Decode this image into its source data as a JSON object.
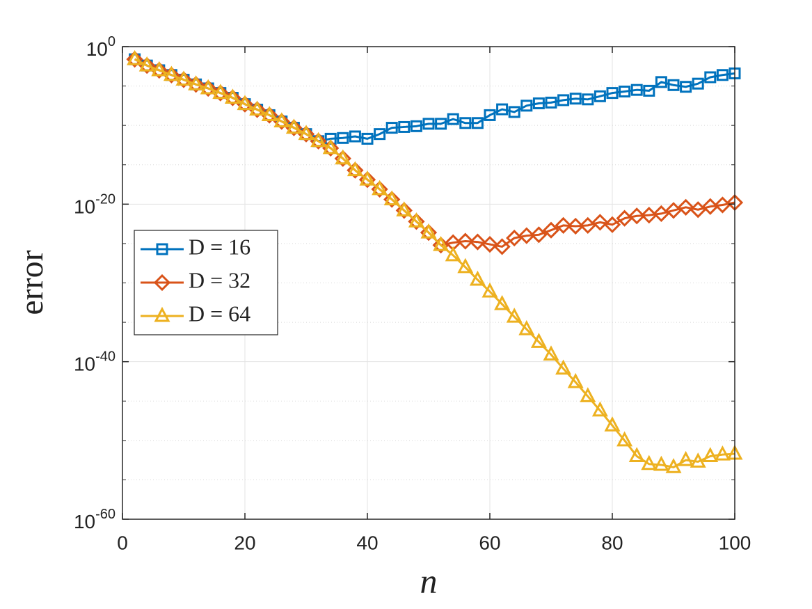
{
  "chart_data": {
    "type": "line",
    "xlabel": "n",
    "ylabel": "error",
    "x": [
      2,
      4,
      6,
      8,
      10,
      12,
      14,
      16,
      18,
      20,
      22,
      24,
      26,
      28,
      30,
      32,
      34,
      36,
      38,
      40,
      42,
      44,
      46,
      48,
      50,
      52,
      54,
      56,
      58,
      60,
      62,
      64,
      66,
      68,
      70,
      72,
      74,
      76,
      78,
      80,
      82,
      84,
      86,
      88,
      90,
      92,
      94,
      96,
      98,
      100
    ],
    "series": [
      {
        "name": "D = 16",
        "color": "#0072BD",
        "marker": "square",
        "values": [
          0.025,
          0.004,
          0.001,
          0.00025,
          6.3e-05,
          1.6e-05,
          5e-06,
          1.3e-06,
          3.2e-07,
          5e-08,
          1e-08,
          2e-09,
          3.2e-10,
          5e-11,
          7.9e-12,
          1e-12,
          2e-12,
          2.5e-12,
          4e-12,
          2e-12,
          7.9e-12,
          5e-11,
          6.3e-11,
          7.9e-11,
          1.6e-10,
          1.6e-10,
          6.3e-10,
          2e-10,
          2e-10,
          2e-09,
          1.1e-08,
          5e-09,
          3.2e-08,
          6.3e-08,
          7.9e-08,
          1.6e-07,
          2.5e-07,
          2e-07,
          5e-07,
          1.3e-06,
          2e-06,
          3.2e-06,
          2.5e-06,
          3.2e-05,
          1.3e-05,
          7.9e-06,
          2e-05,
          0.00013,
          0.00025,
          0.0004
        ]
      },
      {
        "name": "D = 32",
        "color": "#D95319",
        "marker": "diamond",
        "values": [
          0.025,
          0.004,
          0.001,
          0.00025,
          6.3e-05,
          1.6e-05,
          5e-06,
          1.3e-06,
          3.2e-07,
          5e-08,
          1e-08,
          2e-09,
          3.2e-10,
          5e-11,
          7.9e-12,
          1e-12,
          1.3e-13,
          6.3e-15,
          2e-16,
          1.3e-17,
          7.9e-19,
          4e-20,
          1.6e-21,
          6.3e-23,
          2.5e-24,
          6.3e-26,
          1.3e-25,
          2e-25,
          1.6e-25,
          7.9e-26,
          4e-26,
          5e-25,
          1e-24,
          1.3e-24,
          5e-24,
          2e-23,
          1.6e-23,
          2e-23,
          5e-23,
          2.5e-23,
          1.6e-22,
          3.2e-22,
          4e-22,
          6.3e-22,
          1.6e-21,
          4e-21,
          2e-21,
          5e-21,
          7.9e-21,
          1.6e-20
        ]
      },
      {
        "name": "D = 64",
        "color": "#EDB120",
        "marker": "triangle",
        "values": [
          0.025,
          0.004,
          0.001,
          0.00025,
          6.3e-05,
          1.6e-05,
          5e-06,
          1.3e-06,
          3.2e-07,
          5e-08,
          1e-08,
          2e-09,
          3.2e-10,
          5e-11,
          7.9e-12,
          1e-12,
          1.3e-13,
          6.3e-15,
          2e-16,
          1.3e-17,
          7.9e-19,
          4e-20,
          1.6e-21,
          6.3e-23,
          2.5e-24,
          6.3e-26,
          3.2e-27,
          1e-28,
          2.5e-30,
          7.9e-32,
          2e-33,
          5e-35,
          1.3e-36,
          3.2e-38,
          7.9e-40,
          1.3e-41,
          2.5e-43,
          4e-45,
          6.3e-47,
          7.9e-49,
          1e-50,
          1e-52,
          1e-53,
          7.9e-54,
          4e-54,
          3.2e-53,
          2e-53,
          1e-52,
          1.6e-52,
          2e-52
        ]
      }
    ],
    "xlim": [
      0,
      100
    ],
    "xticks": [
      0,
      20,
      40,
      60,
      80,
      100
    ],
    "ylim": [
      1e-60,
      1
    ],
    "ylog": true,
    "yticks": [
      {
        "value": 1e-60,
        "label": "10^-60"
      },
      {
        "value": 1e-40,
        "label": "10^-40"
      },
      {
        "value": 1e-20,
        "label": "10^-20"
      },
      {
        "value": 1,
        "label": "10^0"
      }
    ],
    "yminor": [
      1e-55,
      1e-50,
      1e-45,
      1e-35,
      1e-30,
      1e-25,
      1e-15,
      1e-10,
      1e-05
    ],
    "grid": true,
    "legend": "west"
  }
}
